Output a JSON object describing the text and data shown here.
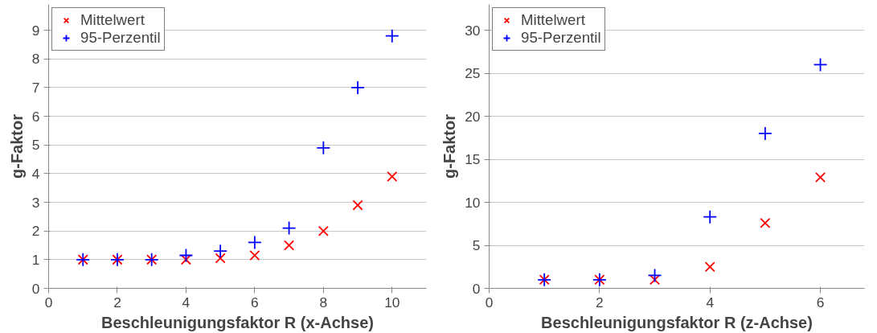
{
  "chart_data": [
    {
      "type": "scatter",
      "xlabel": "Beschleunigungsfaktor R (x-Achse)",
      "ylabel": "g-Faktor",
      "x": [
        1,
        2,
        3,
        4,
        5,
        6,
        7,
        8,
        9,
        10
      ],
      "series": [
        {
          "name": "Mittelwert",
          "color": "#ff0000",
          "marker": "x",
          "values": [
            1,
            1,
            1,
            1,
            1.05,
            1.15,
            1.5,
            2.0,
            2.9,
            3.9
          ]
        },
        {
          "name": "95-Perzentil",
          "color": "#0000ff",
          "marker": "cross",
          "values": [
            1,
            1,
            1,
            1.15,
            1.3,
            1.6,
            2.1,
            4.9,
            7.0,
            8.8
          ]
        }
      ],
      "xlim": [
        0,
        11
      ],
      "xticks": [
        0,
        2,
        4,
        6,
        8,
        10
      ],
      "ylim": [
        0,
        9.9
      ],
      "yticks": [
        0,
        1,
        2,
        3,
        4,
        5,
        6,
        7,
        8,
        9
      ],
      "grid": "y",
      "legend": "top left"
    },
    {
      "type": "scatter",
      "xlabel": "Beschleunigungsfaktor R (z-Achse)",
      "ylabel": "g-Faktor",
      "x": [
        1,
        2,
        3,
        4,
        5,
        6
      ],
      "series": [
        {
          "name": "Mittelwert",
          "color": "#ff0000",
          "marker": "x",
          "values": [
            1,
            1,
            1,
            2.5,
            7.6,
            12.9
          ]
        },
        {
          "name": "95-Perzentil",
          "color": "#0000ff",
          "marker": "cross",
          "values": [
            1,
            1,
            1.5,
            8.3,
            18,
            26
          ]
        }
      ],
      "xlim": [
        0,
        6.8
      ],
      "xticks": [
        0,
        2,
        4,
        6
      ],
      "ylim": [
        0,
        33
      ],
      "yticks": [
        0,
        5,
        10,
        15,
        20,
        25,
        30
      ],
      "grid": "y",
      "legend": "top left"
    }
  ]
}
